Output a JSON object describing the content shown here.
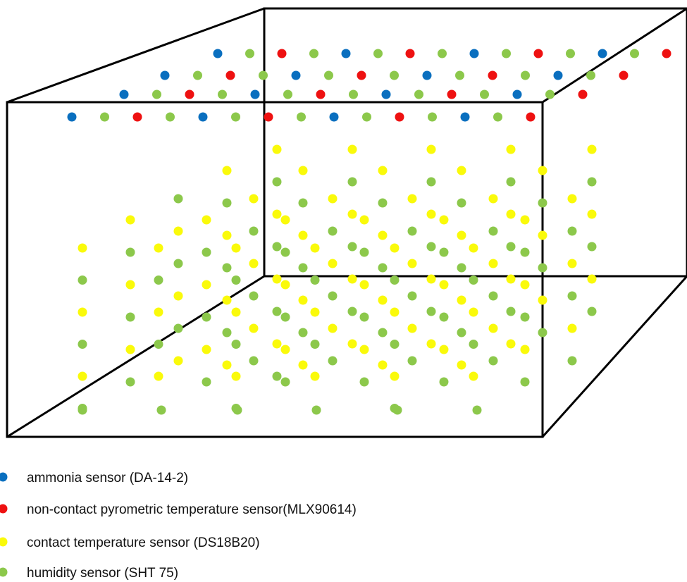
{
  "colors": {
    "ammonia": "#0a6fbf",
    "pyrometric": "#ee1111",
    "contact": "#fafa0a",
    "humidity": "#8cc84b",
    "frame": "#000000"
  },
  "legend": [
    {
      "key": "ammonia",
      "label": "ammonia sensor (DA-14-2)"
    },
    {
      "key": "pyrometric",
      "label": "non-contact pyrometric temperature sensor(MLX90614)"
    },
    {
      "key": "contact",
      "label": "contact temperature sensor (DS18B20)"
    },
    {
      "key": "humidity",
      "label": "humidity sensor (SHT 75)"
    }
  ]
}
